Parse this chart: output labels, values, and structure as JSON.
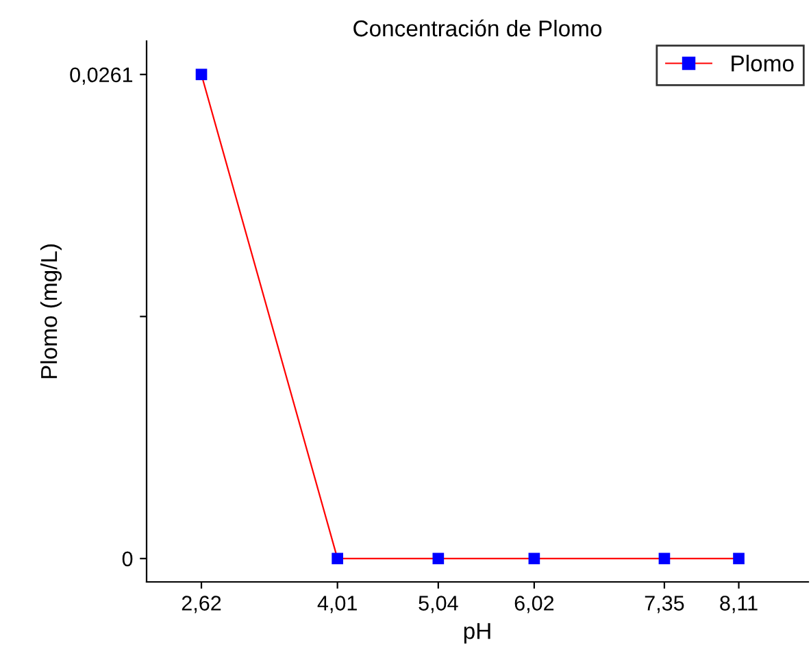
{
  "chart_data": {
    "type": "line",
    "title": "Concentración de Plomo",
    "xlabel": "pH",
    "ylabel": "Plomo (mg/L)",
    "x": [
      2.62,
      4.01,
      5.04,
      6.02,
      7.35,
      8.11
    ],
    "series": [
      {
        "name": "Plomo",
        "color": "#ff0000",
        "colors": [
          "#0000ff",
          "#0000ff",
          "#0000ff",
          "#0000ff",
          "#0000ff",
          "#0000ff"
        ],
        "values": [
          0.0261,
          0,
          0,
          0,
          0,
          0
        ]
      }
    ],
    "xlim": [
      2.06,
      8.82
    ],
    "ylim": [
      -0.00126,
      0.0279
    ],
    "xticks": [
      {
        "value": 2.62,
        "label": "2,62"
      },
      {
        "value": 4.01,
        "label": "4,01"
      },
      {
        "value": 5.04,
        "label": "5,04"
      },
      {
        "value": 6.02,
        "label": "6,02"
      },
      {
        "value": 7.35,
        "label": "7,35"
      },
      {
        "value": 8.11,
        "label": "8,11"
      }
    ],
    "yticks": [
      0,
      {
        "value": 0.01305,
        "label": null
      },
      {
        "value": 0.0261,
        "label": "0,0261"
      }
    ],
    "marker": "square",
    "line_style": "solid",
    "legend": "top right",
    "grid": false
  }
}
